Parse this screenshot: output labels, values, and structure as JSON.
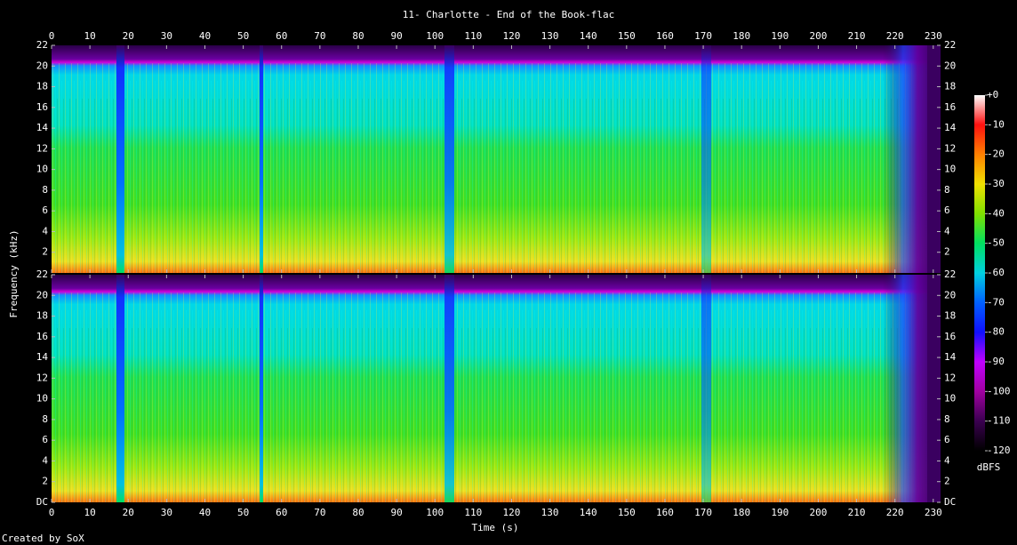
{
  "chart_data": {
    "type": "spectrogram",
    "title": "11- Charlotte - End of the Book-flac",
    "xlabel": "Time (s)",
    "ylabel": "Frequency (kHz)",
    "xlim": [
      0,
      231.9
    ],
    "xticks": [
      0,
      10,
      20,
      30,
      40,
      50,
      60,
      70,
      80,
      90,
      100,
      110,
      120,
      130,
      140,
      150,
      160,
      170,
      180,
      190,
      200,
      210,
      220,
      230
    ],
    "ylim": [
      0,
      22
    ],
    "yticks": [
      {
        "value": 0,
        "label": "DC"
      },
      2,
      4,
      6,
      8,
      10,
      12,
      14,
      16,
      18,
      20,
      22
    ],
    "colorbar": {
      "label": "dBFS",
      "lim": [
        -120,
        0
      ],
      "ticks": [
        {
          "value": 0,
          "label": "+0"
        },
        -10,
        -20,
        -30,
        -40,
        -50,
        -60,
        -70,
        -80,
        -90,
        -100,
        -110,
        -120
      ],
      "colormap": [
        "#000000",
        "#3a0050",
        "#a000a0",
        "#c000ff",
        "#1010ff",
        "#0060ff",
        "#00d0e0",
        "#00e060",
        "#80e000",
        "#f0e000",
        "#ff8000",
        "#ff1010",
        "#ffffff"
      ]
    },
    "footer": "Created by SoX"
  }
}
